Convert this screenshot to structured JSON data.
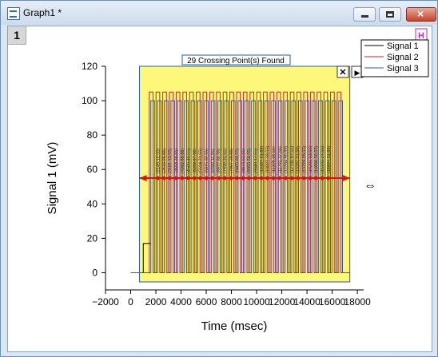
{
  "window": {
    "title": "Graph1 *",
    "layer_number": "1"
  },
  "legend": {
    "h_marker": "H",
    "items": [
      "Signal 1",
      "Signal 2",
      "Signal 3"
    ],
    "colors": [
      "#000000",
      "#cc2222",
      "#1f5fa8"
    ]
  },
  "banner": {
    "text": "29 Crossing Point(s) Found"
  },
  "gadget": {
    "close_symbol": "✕",
    "menu_symbol": "▶"
  },
  "axes": {
    "xlabel": "Time (msec)",
    "ylabel": "Signal 1 (mV)",
    "xticks": [
      "−2000",
      "0",
      "2000",
      "4000",
      "6000",
      "8000",
      "10000",
      "12000",
      "14000",
      "16000",
      "18000"
    ],
    "yticks": [
      "0",
      "20",
      "40",
      "60",
      "80",
      "100",
      "120"
    ]
  },
  "chart_data": {
    "type": "line",
    "xlim": [
      -2000,
      18500
    ],
    "ylim": [
      -10,
      120
    ],
    "roi": {
      "x_start": 700,
      "x_end": 17400
    },
    "level": 55,
    "pulses": {
      "start": 1600,
      "end": 17000,
      "period": 533,
      "high": 100
    },
    "signal2_high": 105,
    "crossing_count": 29,
    "crossing_labels": [
      "(2149.12,55)",
      "(2616.95,55)",
      "(3101.10,55)",
      "(3558.38,55)",
      "(4092.55,55)",
      "(4586.40,55)",
      "(5059.67,55)",
      "(5524.71,55)",
      "(6015.37,55)",
      "(6480.11,55)",
      "(6972.88,55)",
      "(7439.31,55)",
      "(7907.25,55)",
      "(8405.66,55)",
      "(8873.63,55)",
      "(9355.58,55)",
      "(9849.17,55)",
      "(10337.01,55)",
      "(10827.59,55)",
      "(11308.26,55)",
      "(11791.37,55)",
      "(12264.90,55)",
      "(12736.87,55)",
      "(13251.01,55)",
      "(13729.29,55)",
      "(14201.93,55)",
      "(14686.56,55)",
      "(15192.27,55)",
      "(15694.31,55)"
    ],
    "colors": {
      "roi_fill": "#fdf77a",
      "marker": "#e01010"
    }
  }
}
